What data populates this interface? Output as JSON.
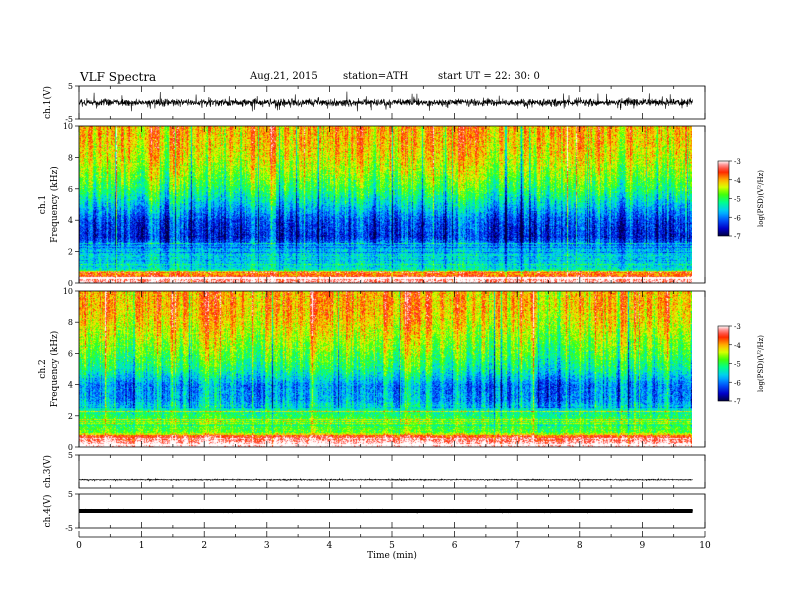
{
  "header": {
    "title": "VLF  Spectra",
    "date": "Aug.21, 2015",
    "station": "station=ATH",
    "start": "start  UT  =   22: 30: 0"
  },
  "colors": {
    "spectrogram_scale": [
      "#000040",
      "#0000d0",
      "#0070ff",
      "#00e0ff",
      "#00ff80",
      "#40ff00",
      "#e8ff00",
      "#ffb000",
      "#ff2000",
      "#ffffff"
    ],
    "trace": "#000000"
  },
  "chart_data": [
    {
      "type": "line",
      "panel": "ch1-waveform",
      "ylabel": "ch.1(V)",
      "ylim": [
        -5,
        5
      ],
      "yticks": [
        "5",
        "-5"
      ],
      "description_values": {
        "baseline": 0.0,
        "typical_amplitude": 1.5
      }
    },
    {
      "type": "heatmap",
      "panel": "ch1-spectrogram",
      "ylabel_top": "ch.1",
      "ylabel": "Frequency  (kHz)",
      "ylim": [
        0,
        10
      ],
      "yticks": [
        "0",
        "2",
        "4",
        "6",
        "8",
        "10"
      ],
      "colorbar": {
        "label": "log(PSD)(V²/Hz)",
        "range": [
          -7,
          -3
        ],
        "ticks": [
          "-3",
          "-4",
          "-5",
          "-6",
          "-7"
        ]
      },
      "levels_by_frequency_khz": [
        [
          0.2,
          -4.0
        ],
        [
          1.0,
          -5.5
        ],
        [
          2.0,
          -5.6
        ],
        [
          3.0,
          -6.4
        ],
        [
          4.0,
          -6.2
        ],
        [
          5.0,
          -5.6
        ],
        [
          6.0,
          -5.0
        ],
        [
          7.0,
          -4.6
        ],
        [
          8.0,
          -4.3
        ],
        [
          9.0,
          -4.1
        ],
        [
          10.0,
          -4.0
        ]
      ]
    },
    {
      "type": "heatmap",
      "panel": "ch2-spectrogram",
      "ylabel_top": "ch.2",
      "ylabel": "Frequency  (kHz)",
      "ylim": [
        0,
        10
      ],
      "yticks": [
        "0",
        "2",
        "4",
        "6",
        "8",
        "10"
      ],
      "colorbar": {
        "label": "log(PSD)(V²/Hz)",
        "range": [
          -7,
          -3
        ],
        "ticks": [
          "-3",
          "-4",
          "-5",
          "-6",
          "-7"
        ]
      },
      "levels_by_frequency_khz": [
        [
          0.2,
          -3.8
        ],
        [
          1.0,
          -4.8
        ],
        [
          2.0,
          -5.0
        ],
        [
          3.0,
          -5.8
        ],
        [
          4.0,
          -5.9
        ],
        [
          5.0,
          -5.2
        ],
        [
          6.0,
          -4.8
        ],
        [
          7.0,
          -4.5
        ],
        [
          8.0,
          -4.2
        ],
        [
          9.0,
          -4.0
        ],
        [
          10.0,
          -4.0
        ]
      ]
    },
    {
      "type": "line",
      "panel": "ch3-waveform",
      "ylabel": "ch.3(V)",
      "ylim": [
        -5,
        5
      ],
      "yticks": [
        "5"
      ],
      "description_values": {
        "baseline": -2.5,
        "typical_amplitude": 0.2
      }
    },
    {
      "type": "line",
      "panel": "ch4-waveform",
      "ylabel": "ch.4(V)",
      "ylim": [
        -5,
        5
      ],
      "yticks": [
        "5",
        "-5"
      ],
      "description_values": {
        "baseline": 0.0,
        "typical_amplitude": 0.3
      }
    },
    {
      "type": "axis",
      "panel": "time-axis",
      "xlabel": "Time  (min)",
      "xlim": [
        0,
        10
      ],
      "xticks": [
        "0",
        "1",
        "2",
        "3",
        "4",
        "5",
        "6",
        "7",
        "8",
        "9",
        "10"
      ],
      "data_end_min": 9.8
    }
  ]
}
